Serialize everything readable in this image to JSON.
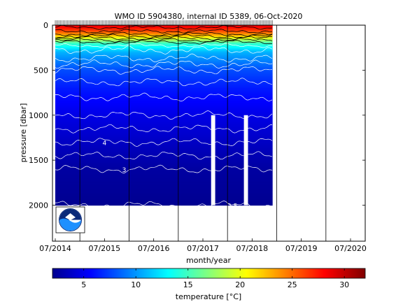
{
  "chart_data": {
    "type": "heatmap",
    "title": "WMO ID 5904380, internal ID 5389, 06-Oct-2020",
    "xlabel": "month/year",
    "ylabel": "pressure [dbar]",
    "x_ticks": [
      "07/2014",
      "07/2015",
      "07/2016",
      "07/2017",
      "07/2018",
      "07/2019",
      "07/2020"
    ],
    "y_ticks": [
      0,
      500,
      1000,
      1500,
      2000
    ],
    "ylim": [
      0,
      2400
    ],
    "y_reversed": true,
    "data_time_range": [
      "2014-07",
      "2018-12"
    ],
    "data_pressure_range": [
      0,
      2000
    ],
    "contour_labels": [
      "4",
      "3",
      "2.5"
    ],
    "colorbar": {
      "label": "temperature [°C]",
      "ticks": [
        5,
        10,
        15,
        20,
        25,
        30
      ],
      "range": [
        2,
        32
      ],
      "colormap": "jet"
    },
    "temperature_profile": {
      "pressure": [
        0,
        50,
        100,
        200,
        300,
        500,
        700,
        1000,
        1300,
        1600,
        2000
      ],
      "temperature": [
        29,
        27,
        24,
        15,
        11,
        8,
        6.5,
        5,
        4,
        3,
        2.5
      ]
    },
    "isotherms_C": [
      28,
      26,
      24,
      22,
      20,
      18,
      16,
      14,
      12,
      10,
      9,
      8,
      7,
      6,
      5,
      4.5,
      4,
      3.5,
      3,
      2.5
    ],
    "gaps": [
      {
        "start": "2017-09",
        "end": "2017-10",
        "pressure_from": 1000
      },
      {
        "start": "2018-05",
        "end": "2018-06",
        "pressure_from": 1000
      }
    ],
    "grid": "vertical lines at each year start",
    "logo": "NOAA"
  }
}
